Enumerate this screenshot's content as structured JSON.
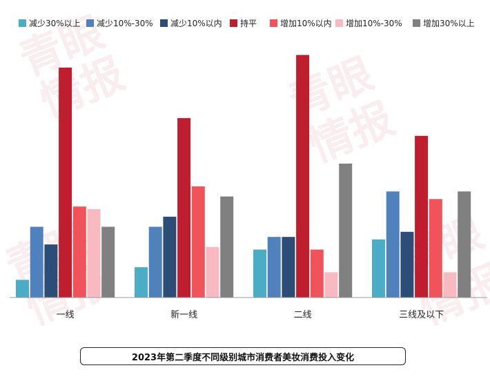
{
  "chart_data": {
    "type": "bar",
    "title": "2023年第二季度不同级别城市消费者美妆消费投入变化",
    "categories": [
      "一线",
      "新一线",
      "二线",
      "三线及以下"
    ],
    "series": [
      {
        "name": "减少30%以上",
        "color": "#4bacc6",
        "values": [
          7,
          12,
          19,
          23
        ]
      },
      {
        "name": "减少10%-30%",
        "color": "#4f81bd",
        "values": [
          28,
          28,
          24,
          42
        ]
      },
      {
        "name": "减少10%以内",
        "color": "#2c4d75",
        "values": [
          21,
          32,
          24,
          26
        ]
      },
      {
        "name": "持平",
        "color": "#be1e2d",
        "values": [
          91,
          71,
          96,
          64
        ]
      },
      {
        "name": "增加10%以内",
        "color": "#f0545a",
        "values": [
          36,
          44,
          19,
          39
        ]
      },
      {
        "name": "增加10%-30%",
        "color": "#f9b9c0",
        "values": [
          35,
          20,
          10,
          10
        ]
      },
      {
        "name": "增加30%以上",
        "color": "#808080",
        "values": [
          28,
          40,
          53,
          42
        ]
      }
    ],
    "ylim": [
      0,
      100
    ],
    "legend_position": "top",
    "grid": false
  },
  "watermark": "青眼情报"
}
